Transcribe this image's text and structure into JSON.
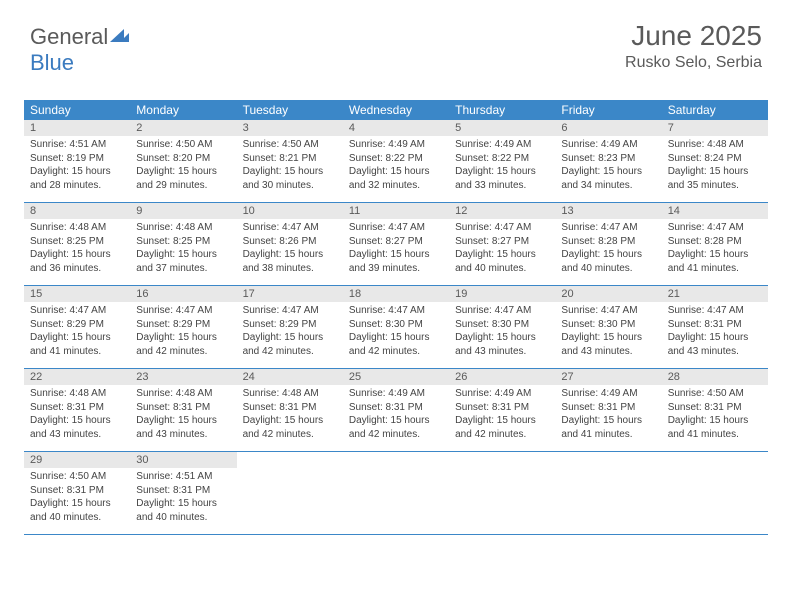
{
  "logo": {
    "word1": "General",
    "word2": "Blue"
  },
  "title": "June 2025",
  "location": "Rusko Selo, Serbia",
  "colors": {
    "header_bg": "#3b87c8",
    "header_text": "#ffffff",
    "daynum_bg": "#e8e8e8",
    "text": "#5a5a5a",
    "rule": "#3b87c8",
    "page_bg": "#ffffff"
  },
  "typography": {
    "title_fontsize": 28,
    "location_fontsize": 16,
    "dayheader_fontsize": 12,
    "daynum_fontsize": 11,
    "body_fontsize": 10
  },
  "day_names": [
    "Sunday",
    "Monday",
    "Tuesday",
    "Wednesday",
    "Thursday",
    "Friday",
    "Saturday"
  ],
  "weeks": [
    [
      {
        "n": "1",
        "sunrise": "Sunrise: 4:51 AM",
        "sunset": "Sunset: 8:19 PM",
        "day1": "Daylight: 15 hours",
        "day2": "and 28 minutes."
      },
      {
        "n": "2",
        "sunrise": "Sunrise: 4:50 AM",
        "sunset": "Sunset: 8:20 PM",
        "day1": "Daylight: 15 hours",
        "day2": "and 29 minutes."
      },
      {
        "n": "3",
        "sunrise": "Sunrise: 4:50 AM",
        "sunset": "Sunset: 8:21 PM",
        "day1": "Daylight: 15 hours",
        "day2": "and 30 minutes."
      },
      {
        "n": "4",
        "sunrise": "Sunrise: 4:49 AM",
        "sunset": "Sunset: 8:22 PM",
        "day1": "Daylight: 15 hours",
        "day2": "and 32 minutes."
      },
      {
        "n": "5",
        "sunrise": "Sunrise: 4:49 AM",
        "sunset": "Sunset: 8:22 PM",
        "day1": "Daylight: 15 hours",
        "day2": "and 33 minutes."
      },
      {
        "n": "6",
        "sunrise": "Sunrise: 4:49 AM",
        "sunset": "Sunset: 8:23 PM",
        "day1": "Daylight: 15 hours",
        "day2": "and 34 minutes."
      },
      {
        "n": "7",
        "sunrise": "Sunrise: 4:48 AM",
        "sunset": "Sunset: 8:24 PM",
        "day1": "Daylight: 15 hours",
        "day2": "and 35 minutes."
      }
    ],
    [
      {
        "n": "8",
        "sunrise": "Sunrise: 4:48 AM",
        "sunset": "Sunset: 8:25 PM",
        "day1": "Daylight: 15 hours",
        "day2": "and 36 minutes."
      },
      {
        "n": "9",
        "sunrise": "Sunrise: 4:48 AM",
        "sunset": "Sunset: 8:25 PM",
        "day1": "Daylight: 15 hours",
        "day2": "and 37 minutes."
      },
      {
        "n": "10",
        "sunrise": "Sunrise: 4:47 AM",
        "sunset": "Sunset: 8:26 PM",
        "day1": "Daylight: 15 hours",
        "day2": "and 38 minutes."
      },
      {
        "n": "11",
        "sunrise": "Sunrise: 4:47 AM",
        "sunset": "Sunset: 8:27 PM",
        "day1": "Daylight: 15 hours",
        "day2": "and 39 minutes."
      },
      {
        "n": "12",
        "sunrise": "Sunrise: 4:47 AM",
        "sunset": "Sunset: 8:27 PM",
        "day1": "Daylight: 15 hours",
        "day2": "and 40 minutes."
      },
      {
        "n": "13",
        "sunrise": "Sunrise: 4:47 AM",
        "sunset": "Sunset: 8:28 PM",
        "day1": "Daylight: 15 hours",
        "day2": "and 40 minutes."
      },
      {
        "n": "14",
        "sunrise": "Sunrise: 4:47 AM",
        "sunset": "Sunset: 8:28 PM",
        "day1": "Daylight: 15 hours",
        "day2": "and 41 minutes."
      }
    ],
    [
      {
        "n": "15",
        "sunrise": "Sunrise: 4:47 AM",
        "sunset": "Sunset: 8:29 PM",
        "day1": "Daylight: 15 hours",
        "day2": "and 41 minutes."
      },
      {
        "n": "16",
        "sunrise": "Sunrise: 4:47 AM",
        "sunset": "Sunset: 8:29 PM",
        "day1": "Daylight: 15 hours",
        "day2": "and 42 minutes."
      },
      {
        "n": "17",
        "sunrise": "Sunrise: 4:47 AM",
        "sunset": "Sunset: 8:29 PM",
        "day1": "Daylight: 15 hours",
        "day2": "and 42 minutes."
      },
      {
        "n": "18",
        "sunrise": "Sunrise: 4:47 AM",
        "sunset": "Sunset: 8:30 PM",
        "day1": "Daylight: 15 hours",
        "day2": "and 42 minutes."
      },
      {
        "n": "19",
        "sunrise": "Sunrise: 4:47 AM",
        "sunset": "Sunset: 8:30 PM",
        "day1": "Daylight: 15 hours",
        "day2": "and 43 minutes."
      },
      {
        "n": "20",
        "sunrise": "Sunrise: 4:47 AM",
        "sunset": "Sunset: 8:30 PM",
        "day1": "Daylight: 15 hours",
        "day2": "and 43 minutes."
      },
      {
        "n": "21",
        "sunrise": "Sunrise: 4:47 AM",
        "sunset": "Sunset: 8:31 PM",
        "day1": "Daylight: 15 hours",
        "day2": "and 43 minutes."
      }
    ],
    [
      {
        "n": "22",
        "sunrise": "Sunrise: 4:48 AM",
        "sunset": "Sunset: 8:31 PM",
        "day1": "Daylight: 15 hours",
        "day2": "and 43 minutes."
      },
      {
        "n": "23",
        "sunrise": "Sunrise: 4:48 AM",
        "sunset": "Sunset: 8:31 PM",
        "day1": "Daylight: 15 hours",
        "day2": "and 43 minutes."
      },
      {
        "n": "24",
        "sunrise": "Sunrise: 4:48 AM",
        "sunset": "Sunset: 8:31 PM",
        "day1": "Daylight: 15 hours",
        "day2": "and 42 minutes."
      },
      {
        "n": "25",
        "sunrise": "Sunrise: 4:49 AM",
        "sunset": "Sunset: 8:31 PM",
        "day1": "Daylight: 15 hours",
        "day2": "and 42 minutes."
      },
      {
        "n": "26",
        "sunrise": "Sunrise: 4:49 AM",
        "sunset": "Sunset: 8:31 PM",
        "day1": "Daylight: 15 hours",
        "day2": "and 42 minutes."
      },
      {
        "n": "27",
        "sunrise": "Sunrise: 4:49 AM",
        "sunset": "Sunset: 8:31 PM",
        "day1": "Daylight: 15 hours",
        "day2": "and 41 minutes."
      },
      {
        "n": "28",
        "sunrise": "Sunrise: 4:50 AM",
        "sunset": "Sunset: 8:31 PM",
        "day1": "Daylight: 15 hours",
        "day2": "and 41 minutes."
      }
    ],
    [
      {
        "n": "29",
        "sunrise": "Sunrise: 4:50 AM",
        "sunset": "Sunset: 8:31 PM",
        "day1": "Daylight: 15 hours",
        "day2": "and 40 minutes."
      },
      {
        "n": "30",
        "sunrise": "Sunrise: 4:51 AM",
        "sunset": "Sunset: 8:31 PM",
        "day1": "Daylight: 15 hours",
        "day2": "and 40 minutes."
      },
      {
        "empty": true
      },
      {
        "empty": true
      },
      {
        "empty": true
      },
      {
        "empty": true
      },
      {
        "empty": true
      }
    ]
  ]
}
